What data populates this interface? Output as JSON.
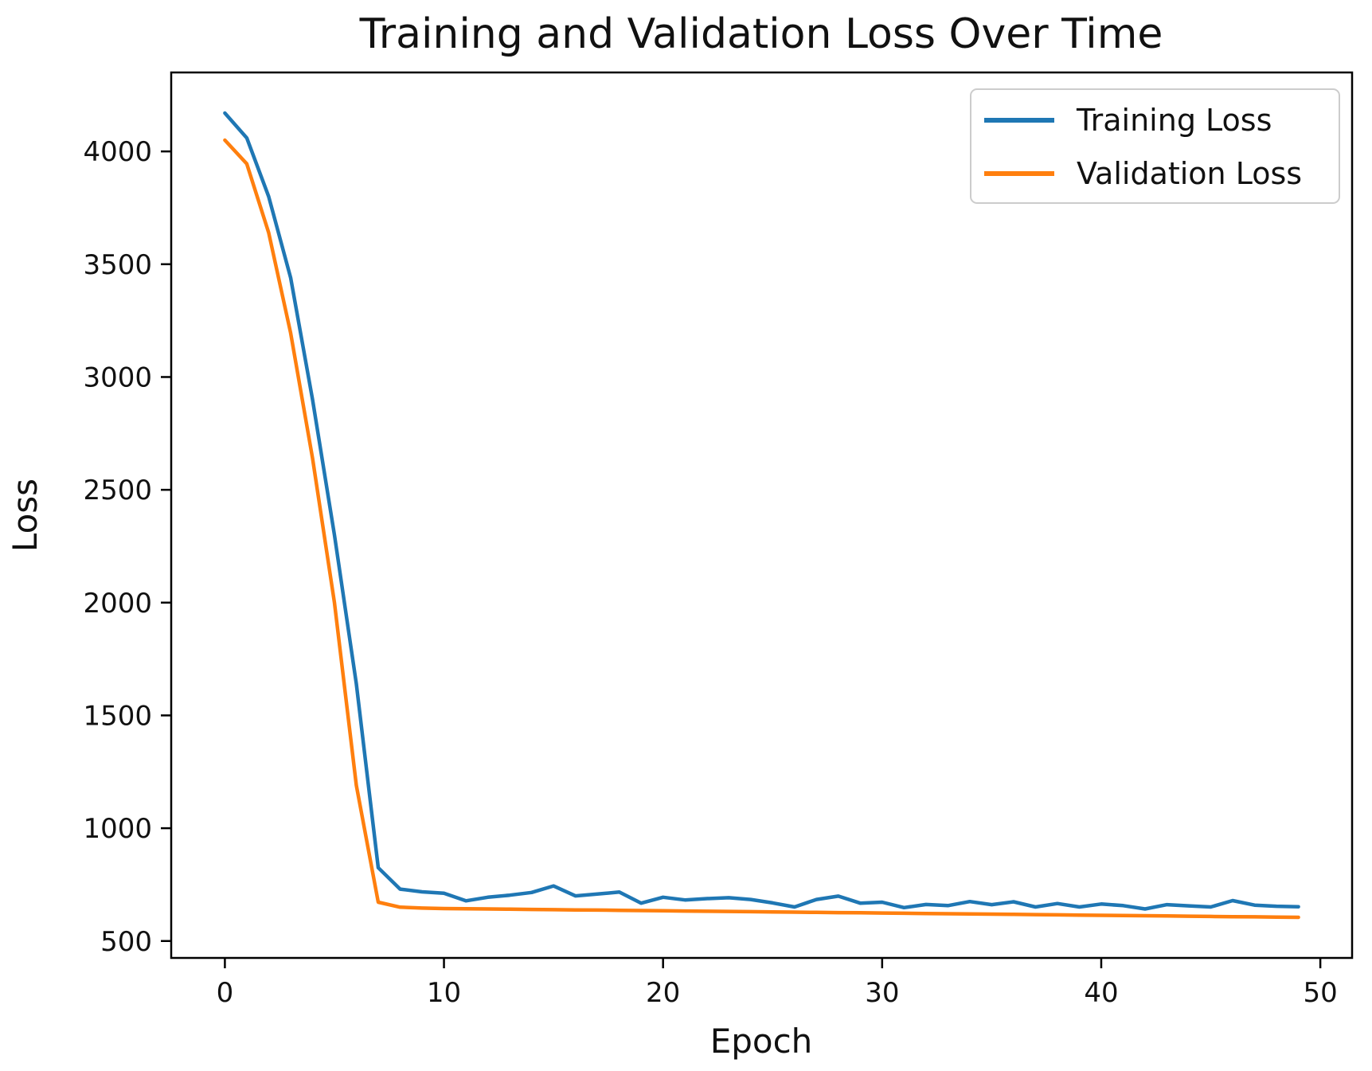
{
  "figure": {
    "title": "Training and Validation Loss Over Time"
  },
  "chart_data": {
    "type": "line",
    "title": "Training and Validation Loss Over Time",
    "xlabel": "Epoch",
    "ylabel": "Loss",
    "grid": false,
    "background": "#ffffff",
    "axis_color": "#000000",
    "xlim": [
      -2.45,
      51.45
    ],
    "ylim": [
      425,
      4350
    ],
    "xticks": [
      0,
      10,
      20,
      30,
      40,
      50
    ],
    "yticks": [
      500,
      1000,
      1500,
      2000,
      2500,
      3000,
      3500,
      4000
    ],
    "legend": {
      "position": "upper right",
      "entries": [
        "Training Loss",
        "Validation Loss"
      ]
    },
    "x": [
      0,
      1,
      2,
      3,
      4,
      5,
      6,
      7,
      8,
      9,
      10,
      11,
      12,
      13,
      14,
      15,
      16,
      17,
      18,
      19,
      20,
      21,
      22,
      23,
      24,
      25,
      26,
      27,
      28,
      29,
      30,
      31,
      32,
      33,
      34,
      35,
      36,
      37,
      38,
      39,
      40,
      41,
      42,
      43,
      44,
      45,
      46,
      47,
      48,
      49
    ],
    "series": [
      {
        "name": "Training Loss",
        "color": "#1f77b4",
        "values": [
          4170,
          4060,
          3800,
          3440,
          2900,
          2300,
          1640,
          825,
          730,
          718,
          712,
          678,
          694,
          703,
          715,
          744,
          700,
          708,
          717,
          668,
          694,
          682,
          688,
          692,
          684,
          669,
          651,
          684,
          699,
          668,
          672,
          648,
          662,
          657,
          675,
          661,
          674,
          651,
          666,
          651,
          664,
          657,
          642,
          661,
          656,
          651,
          679,
          659,
          654,
          652
        ]
      },
      {
        "name": "Validation Loss",
        "color": "#ff7f0e",
        "values": [
          4050,
          3945,
          3640,
          3195,
          2640,
          2000,
          1190,
          672,
          650,
          646,
          644,
          643,
          642,
          641,
          640,
          639,
          638,
          637,
          636,
          635,
          634,
          633,
          632,
          631,
          630,
          629,
          628,
          627,
          626,
          625,
          624,
          623,
          622,
          621,
          620,
          619,
          618,
          617,
          616,
          615,
          614,
          613,
          612,
          611,
          610,
          609,
          608,
          607,
          606,
          605
        ]
      }
    ]
  }
}
